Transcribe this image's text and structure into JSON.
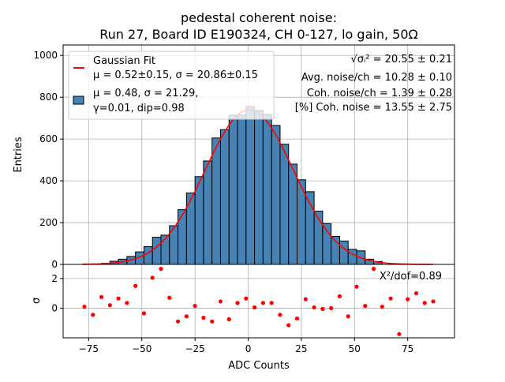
{
  "chart_data": {
    "type": "bar",
    "title_line1": "pedestal coherent noise:",
    "title_line2": "Run 27, Board ID E190324, CH 0-127, lo gain, 50Ω",
    "xlabel": "ADC Counts",
    "ylabel": "Entries",
    "residual_ylabel": "σ",
    "xlim": [
      -87,
      97
    ],
    "ylim": [
      0,
      1050
    ],
    "residual_ylim": [
      -2.0,
      2.95
    ],
    "xticks": [
      -75,
      -50,
      -25,
      0,
      25,
      50,
      75
    ],
    "xtick_labels": [
      "−75",
      "−50",
      "−25",
      "0",
      "25",
      "50",
      "75"
    ],
    "yticks": [
      0,
      200,
      400,
      600,
      800,
      1000
    ],
    "ytick_labels": [
      "0",
      "200",
      "400",
      "600",
      "800",
      "1000"
    ],
    "residual_yticks": [
      0,
      2
    ],
    "residual_ytick_labels": [
      "0",
      "2"
    ],
    "grid": true,
    "legend_placement": "top-left",
    "legend": [
      {
        "label_line1": "Gaussian Fit",
        "label_line2": "μ = 0.52±0.15, σ = 20.86±0.15",
        "type": "line",
        "color": "#ff0000"
      },
      {
        "label_line1": "μ = 0.48, σ = 21.29,",
        "label_line2": "γ=0.01, dip=0.98",
        "type": "patch",
        "color": "#4682b4"
      }
    ],
    "annotations": [
      {
        "text": "√σᵢ² = 20.55 ± 0.21"
      },
      {
        "text": "Avg. noise/ch = 10.28 ± 0.10"
      },
      {
        "text": "Coh. noise/ch = 1.39 ± 0.28"
      },
      {
        "text": "[%] Coh. noise = 13.55  ± 2.75"
      }
    ],
    "chi2_label": "X²/dof=0.89",
    "bin_width": 4,
    "bin_edges_start": -69,
    "histogram": {
      "name": "Entries",
      "color": "#4682b4",
      "values": [
        5,
        15,
        25,
        38,
        60,
        85,
        130,
        140,
        185,
        262,
        342,
        420,
        495,
        605,
        645,
        714,
        715,
        755,
        736,
        718,
        665,
        575,
        480,
        405,
        348,
        255,
        195,
        134,
        112,
        72,
        65,
        25,
        14
      ]
    },
    "fit": {
      "name": "Gaussian Fit",
      "color": "#ff0000",
      "mu": 0.52,
      "sigma": 20.86,
      "amplitude": 740,
      "x_range": [
        -78,
        87
      ]
    },
    "residuals": {
      "color": "#ff0000",
      "x": [
        -77,
        -73,
        -69,
        -65,
        -61,
        -57,
        -53,
        -49,
        -45,
        -41,
        -37,
        -33,
        -29,
        -25,
        -21,
        -17,
        -13,
        -9,
        -5,
        -1,
        3,
        7,
        11,
        15,
        19,
        23,
        27,
        31,
        35,
        39,
        43,
        47,
        51,
        55,
        59,
        63,
        67,
        71,
        75,
        79,
        83,
        87
      ],
      "values": [
        0.1,
        -0.45,
        0.75,
        0.2,
        0.65,
        0.35,
        1.5,
        -0.35,
        2.05,
        2.65,
        0.7,
        -0.9,
        -0.55,
        0.15,
        -0.65,
        -0.9,
        0.45,
        -0.75,
        0.35,
        0.65,
        0.05,
        0.35,
        0.35,
        -0.45,
        -1.15,
        -0.7,
        0.6,
        0.05,
        -0.05,
        0.0,
        0.8,
        -0.55,
        1.45,
        0.15,
        2.65,
        0.1,
        0.65,
        -1.75,
        0.6,
        1.0,
        0.35,
        0.45
      ]
    }
  }
}
